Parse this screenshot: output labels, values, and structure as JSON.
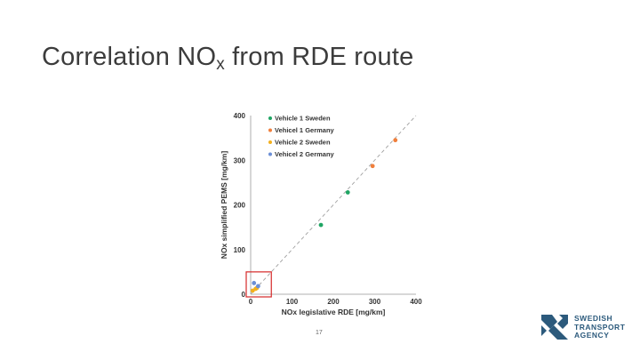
{
  "title": {
    "main": "Correlation NO",
    "sub": "x",
    "rest": " from RDE route"
  },
  "page_number": "17",
  "logo": {
    "line1": "SWEDISH",
    "line2": "TRANSPORT",
    "line3": "AGENCY",
    "color": "#2c5a7c"
  },
  "chart_data": {
    "type": "scatter",
    "xlabel": "NOx legislative RDE [mg/km]",
    "ylabel": "NOx simplified PEMS [mg/km]",
    "xlim": [
      0,
      400
    ],
    "ylim": [
      0,
      400
    ],
    "xticks": [
      "0",
      "100",
      "200",
      "300",
      "400"
    ],
    "yticks": [
      "0",
      "100",
      "200",
      "300",
      "400"
    ],
    "reference_line": "y = x (dashed grey)",
    "highlight_box": {
      "x": [
        0,
        50
      ],
      "y": [
        0,
        50
      ],
      "color": "#d62828"
    },
    "legend_position": "top-left",
    "series": [
      {
        "name": "Vehicle 1 Sweden",
        "color": "#1fa563",
        "x": [
          170,
          235
        ],
        "y": [
          155,
          228
        ]
      },
      {
        "name": "Vehicel 1 Germany",
        "color": "#f07f3c",
        "x": [
          295,
          350
        ],
        "y": [
          287,
          345
        ]
      },
      {
        "name": "Vehicle 2 Sweden",
        "color": "#f2b01e",
        "x": [
          5,
          12,
          15
        ],
        "y": [
          8,
          12,
          14
        ]
      },
      {
        "name": "Vehicel 2 Germany",
        "color": "#6b8fd6",
        "x": [
          8,
          18
        ],
        "y": [
          25,
          18
        ]
      }
    ]
  }
}
